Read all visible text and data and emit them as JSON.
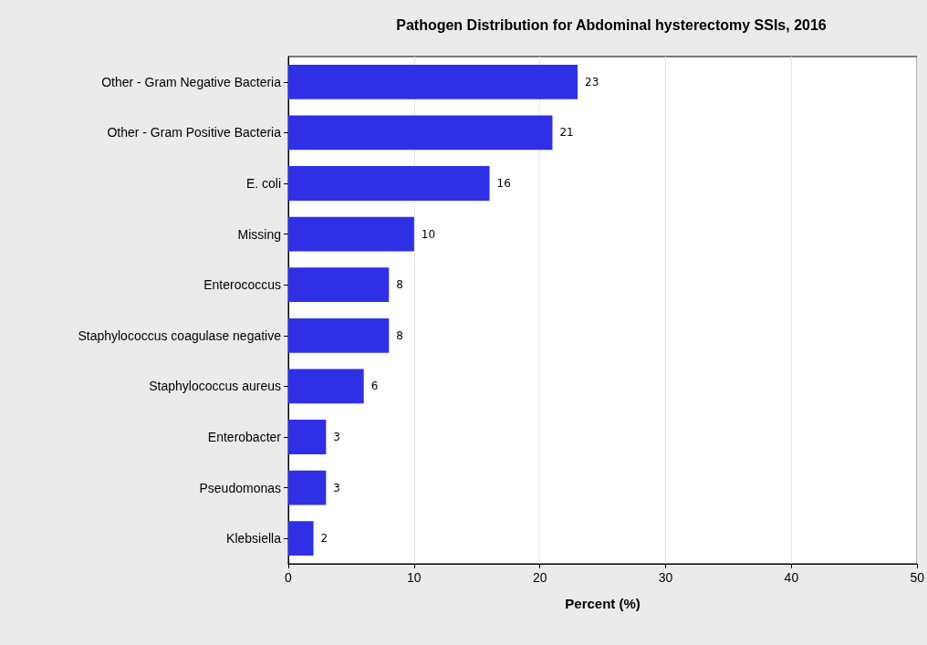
{
  "chart_data": {
    "type": "bar",
    "orientation": "horizontal",
    "title": "Pathogen Distribution for Abdominal hysterectomy SSIs, 2016",
    "xlabel": "Percent (%)",
    "categories": [
      "Other - Gram Negative Bacteria",
      "Other - Gram Positive Bacteria",
      "E. coli",
      "Missing",
      "Enterococcus",
      "Staphylococcus coagulase negative",
      "Staphylococcus aureus",
      "Enterobacter",
      "Pseudomonas",
      "Klebsiella"
    ],
    "values": [
      23,
      21,
      16,
      10,
      8,
      8,
      6,
      3,
      3,
      2
    ],
    "color": "#2f2fe6",
    "xlim": [
      0,
      50
    ],
    "xticks": [
      0,
      10,
      20,
      30,
      40,
      50
    ],
    "grid": "x",
    "data_labels": true
  }
}
